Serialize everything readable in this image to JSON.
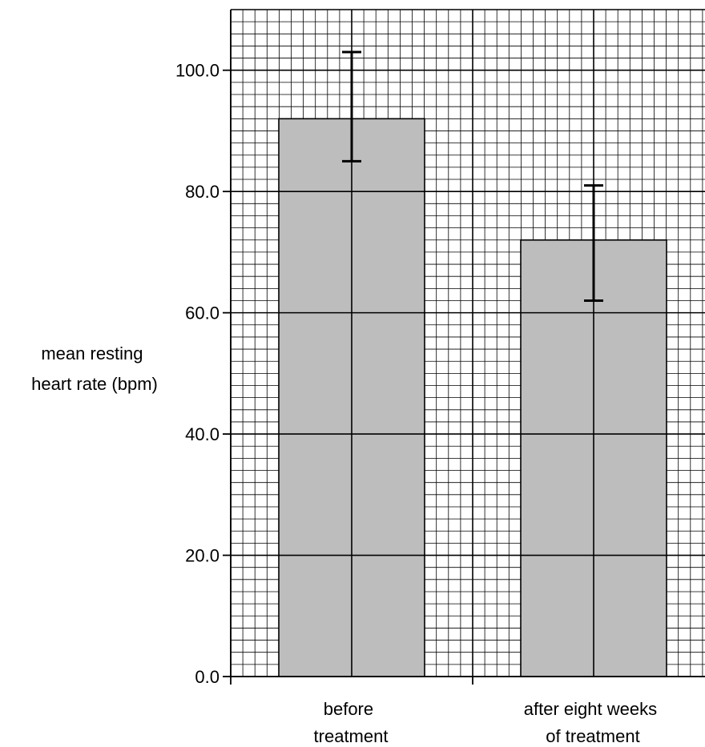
{
  "chart_data": {
    "type": "bar",
    "categories": [
      [
        "before",
        "treatment"
      ],
      [
        "after eight weeks",
        "of treatment"
      ]
    ],
    "values": [
      92.0,
      72.0
    ],
    "error_bars": [
      {
        "low": 85.0,
        "high": 103.0
      },
      {
        "low": 62.0,
        "high": 81.0
      }
    ],
    "ylabel": [
      "mean resting",
      "heart rate (bpm)"
    ],
    "xlabel": "",
    "ylim": [
      0,
      110
    ],
    "yticks": [
      {
        "value": 0,
        "label": "0.0"
      },
      {
        "value": 20,
        "label": "20.0"
      },
      {
        "value": 40,
        "label": "40.0"
      },
      {
        "value": 60,
        "label": "60.0"
      },
      {
        "value": 80,
        "label": "80.0"
      },
      {
        "value": 100,
        "label": "100.0"
      }
    ],
    "grid": true,
    "minor_grid_step": 2,
    "major_grid_step": 20,
    "bar_color": "#bdbdbd",
    "grid_color": "#000000",
    "error_bar_color": "#000000"
  }
}
